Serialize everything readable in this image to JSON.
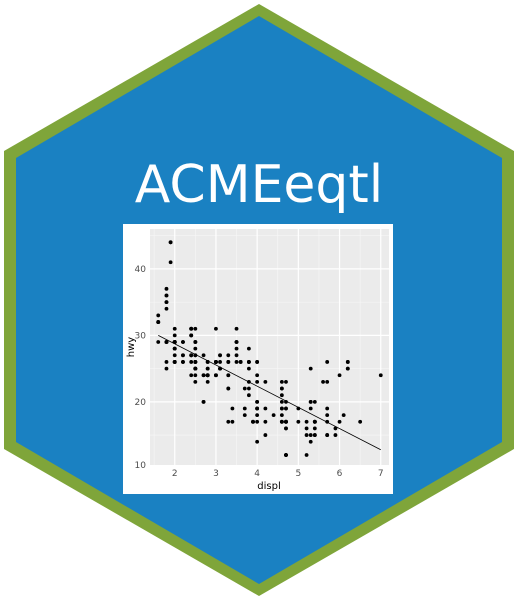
{
  "logo": {
    "title": "ACMEeqtl",
    "fill_color": "#1a81c2",
    "border_color": "#7fa53a"
  },
  "chart_data": {
    "type": "scatter",
    "xlabel": "displ",
    "ylabel": "hwy",
    "xlim": [
      1.4,
      7.2
    ],
    "ylim": [
      10.5,
      46
    ],
    "x_ticks": [
      "2",
      "3",
      "4",
      "5",
      "6",
      "7"
    ],
    "y_ticks": [
      "20",
      "30",
      "40"
    ],
    "y_tick_values": [
      20,
      30,
      40
    ],
    "x_tick_values": [
      2,
      3,
      4,
      5,
      6,
      7
    ],
    "y_extra_tick": "10",
    "grid": true,
    "panel_color": "#ebebeb",
    "trend_line": {
      "x": [
        1.6,
        7.0
      ],
      "y": [
        30.0,
        12.8
      ]
    },
    "points": [
      [
        1.8,
        29
      ],
      [
        1.8,
        29
      ],
      [
        2.0,
        31
      ],
      [
        2.0,
        30
      ],
      [
        2.8,
        26
      ],
      [
        2.8,
        26
      ],
      [
        3.1,
        27
      ],
      [
        1.8,
        26
      ],
      [
        1.8,
        25
      ],
      [
        2.0,
        28
      ],
      [
        2.0,
        27
      ],
      [
        2.8,
        25
      ],
      [
        2.8,
        25
      ],
      [
        3.1,
        25
      ],
      [
        3.1,
        25
      ],
      [
        2.8,
        24
      ],
      [
        3.1,
        25
      ],
      [
        4.2,
        23
      ],
      [
        5.3,
        20
      ],
      [
        5.3,
        15
      ],
      [
        5.3,
        20
      ],
      [
        5.7,
        17
      ],
      [
        6.0,
        17
      ],
      [
        5.7,
        26
      ],
      [
        5.7,
        23
      ],
      [
        6.2,
        26
      ],
      [
        6.2,
        25
      ],
      [
        7.0,
        24
      ],
      [
        5.3,
        19
      ],
      [
        5.3,
        14
      ],
      [
        5.7,
        15
      ],
      [
        6.5,
        17
      ],
      [
        2.4,
        27
      ],
      [
        2.4,
        30
      ],
      [
        3.1,
        26
      ],
      [
        3.5,
        29
      ],
      [
        3.6,
        26
      ],
      [
        2.4,
        24
      ],
      [
        3.0,
        24
      ],
      [
        3.3,
        22
      ],
      [
        3.3,
        22
      ],
      [
        3.3,
        24
      ],
      [
        3.3,
        24
      ],
      [
        3.3,
        17
      ],
      [
        3.8,
        22
      ],
      [
        3.8,
        21
      ],
      [
        3.8,
        23
      ],
      [
        4.0,
        23
      ],
      [
        3.7,
        19
      ],
      [
        3.7,
        18
      ],
      [
        3.9,
        17
      ],
      [
        3.9,
        17
      ],
      [
        4.7,
        19
      ],
      [
        4.7,
        19
      ],
      [
        4.7,
        12
      ],
      [
        5.2,
        17
      ],
      [
        5.2,
        15
      ],
      [
        3.9,
        17
      ],
      [
        4.7,
        17
      ],
      [
        4.7,
        12
      ],
      [
        4.7,
        17
      ],
      [
        5.2,
        16
      ],
      [
        5.7,
        18
      ],
      [
        5.9,
        15
      ],
      [
        4.7,
        16
      ],
      [
        4.7,
        12
      ],
      [
        4.7,
        17
      ],
      [
        4.7,
        17
      ],
      [
        4.7,
        16
      ],
      [
        5.2,
        12
      ],
      [
        5.7,
        15
      ],
      [
        5.9,
        16
      ],
      [
        4.6,
        17
      ],
      [
        5.4,
        15
      ],
      [
        5.4,
        17
      ],
      [
        5.4,
        17
      ],
      [
        4.0,
        19
      ],
      [
        4.0,
        19
      ],
      [
        4.0,
        20
      ],
      [
        4.6,
        20
      ],
      [
        5.0,
        17
      ],
      [
        4.2,
        17
      ],
      [
        4.2,
        19
      ],
      [
        4.6,
        19
      ],
      [
        4.6,
        17
      ],
      [
        4.6,
        17
      ],
      [
        5.4,
        17
      ],
      [
        5.4,
        17
      ],
      [
        3.8,
        26
      ],
      [
        3.8,
        25
      ],
      [
        4.0,
        26
      ],
      [
        4.0,
        24
      ],
      [
        4.6,
        21
      ],
      [
        4.6,
        22
      ],
      [
        4.6,
        23
      ],
      [
        4.6,
        22
      ],
      [
        5.4,
        20
      ],
      [
        1.6,
        33
      ],
      [
        1.6,
        32
      ],
      [
        1.6,
        32
      ],
      [
        1.6,
        29
      ],
      [
        1.6,
        32
      ],
      [
        1.8,
        34
      ],
      [
        1.8,
        36
      ],
      [
        1.8,
        36
      ],
      [
        2.0,
        29
      ],
      [
        2.4,
        26
      ],
      [
        2.4,
        27
      ],
      [
        2.4,
        30
      ],
      [
        2.5,
        31
      ],
      [
        2.5,
        26
      ],
      [
        3.3,
        26
      ],
      [
        2.0,
        28
      ],
      [
        2.0,
        26
      ],
      [
        2.0,
        29
      ],
      [
        2.0,
        28
      ],
      [
        2.7,
        27
      ],
      [
        2.7,
        24
      ],
      [
        2.7,
        24
      ],
      [
        3.0,
        24
      ],
      [
        3.7,
        22
      ],
      [
        4.0,
        19
      ],
      [
        4.7,
        20
      ],
      [
        4.7,
        17
      ],
      [
        4.7,
        12
      ],
      [
        5.7,
        19
      ],
      [
        6.1,
        18
      ],
      [
        4.0,
        14
      ],
      [
        4.2,
        15
      ],
      [
        4.4,
        18
      ],
      [
        4.6,
        18
      ],
      [
        5.4,
        15
      ],
      [
        5.4,
        17
      ],
      [
        5.4,
        16
      ],
      [
        4.0,
        18
      ],
      [
        4.0,
        17
      ],
      [
        4.6,
        19
      ],
      [
        5.0,
        19
      ],
      [
        2.4,
        30
      ],
      [
        2.4,
        27
      ],
      [
        2.5,
        29
      ],
      [
        2.5,
        25
      ],
      [
        3.5,
        26
      ],
      [
        3.5,
        29
      ],
      [
        3.0,
        26
      ],
      [
        3.0,
        24
      ],
      [
        3.5,
        29
      ],
      [
        3.3,
        27
      ],
      [
        3.3,
        26
      ],
      [
        4.0,
        26
      ],
      [
        5.6,
        23
      ],
      [
        3.1,
        27
      ],
      [
        3.8,
        26
      ],
      [
        3.8,
        26
      ],
      [
        3.8,
        28
      ],
      [
        5.3,
        25
      ],
      [
        2.5,
        25
      ],
      [
        2.5,
        24
      ],
      [
        2.5,
        27
      ],
      [
        2.5,
        25
      ],
      [
        2.5,
        26
      ],
      [
        2.5,
        23
      ],
      [
        2.2,
        26
      ],
      [
        2.2,
        26
      ],
      [
        2.5,
        26
      ],
      [
        2.5,
        26
      ],
      [
        2.5,
        25
      ],
      [
        2.5,
        27
      ],
      [
        2.5,
        25
      ],
      [
        2.7,
        20
      ],
      [
        2.7,
        20
      ],
      [
        3.4,
        19
      ],
      [
        3.4,
        17
      ],
      [
        4.0,
        20
      ],
      [
        4.7,
        17
      ],
      [
        2.2,
        29
      ],
      [
        2.2,
        27
      ],
      [
        2.4,
        31
      ],
      [
        2.4,
        31
      ],
      [
        3.0,
        26
      ],
      [
        3.0,
        26
      ],
      [
        3.5,
        28
      ],
      [
        2.2,
        27
      ],
      [
        2.2,
        29
      ],
      [
        2.4,
        31
      ],
      [
        2.4,
        31
      ],
      [
        3.0,
        26
      ],
      [
        3.0,
        26
      ],
      [
        3.5,
        27
      ],
      [
        3.0,
        31
      ],
      [
        3.5,
        31
      ],
      [
        1.8,
        35
      ],
      [
        1.8,
        37
      ],
      [
        1.8,
        35
      ],
      [
        1.8,
        29
      ],
      [
        2.0,
        29
      ],
      [
        2.0,
        26
      ],
      [
        2.0,
        29
      ],
      [
        2.0,
        29
      ],
      [
        2.8,
        24
      ],
      [
        1.9,
        44
      ],
      [
        2.0,
        29
      ],
      [
        2.0,
        26
      ],
      [
        2.0,
        29
      ],
      [
        2.0,
        29
      ],
      [
        2.5,
        29
      ],
      [
        2.5,
        29
      ],
      [
        2.8,
        23
      ],
      [
        2.8,
        24
      ],
      [
        1.9,
        44
      ],
      [
        1.9,
        41
      ],
      [
        2.0,
        29
      ],
      [
        2.0,
        26
      ],
      [
        2.5,
        28
      ],
      [
        1.8,
        29
      ],
      [
        1.8,
        29
      ],
      [
        2.0,
        29
      ],
      [
        2.0,
        29
      ],
      [
        2.8,
        24
      ],
      [
        2.8,
        24
      ],
      [
        3.6,
        26
      ],
      [
        4.7,
        23
      ],
      [
        6.2,
        26
      ],
      [
        6.2,
        25
      ],
      [
        6.0,
        24
      ]
    ]
  }
}
